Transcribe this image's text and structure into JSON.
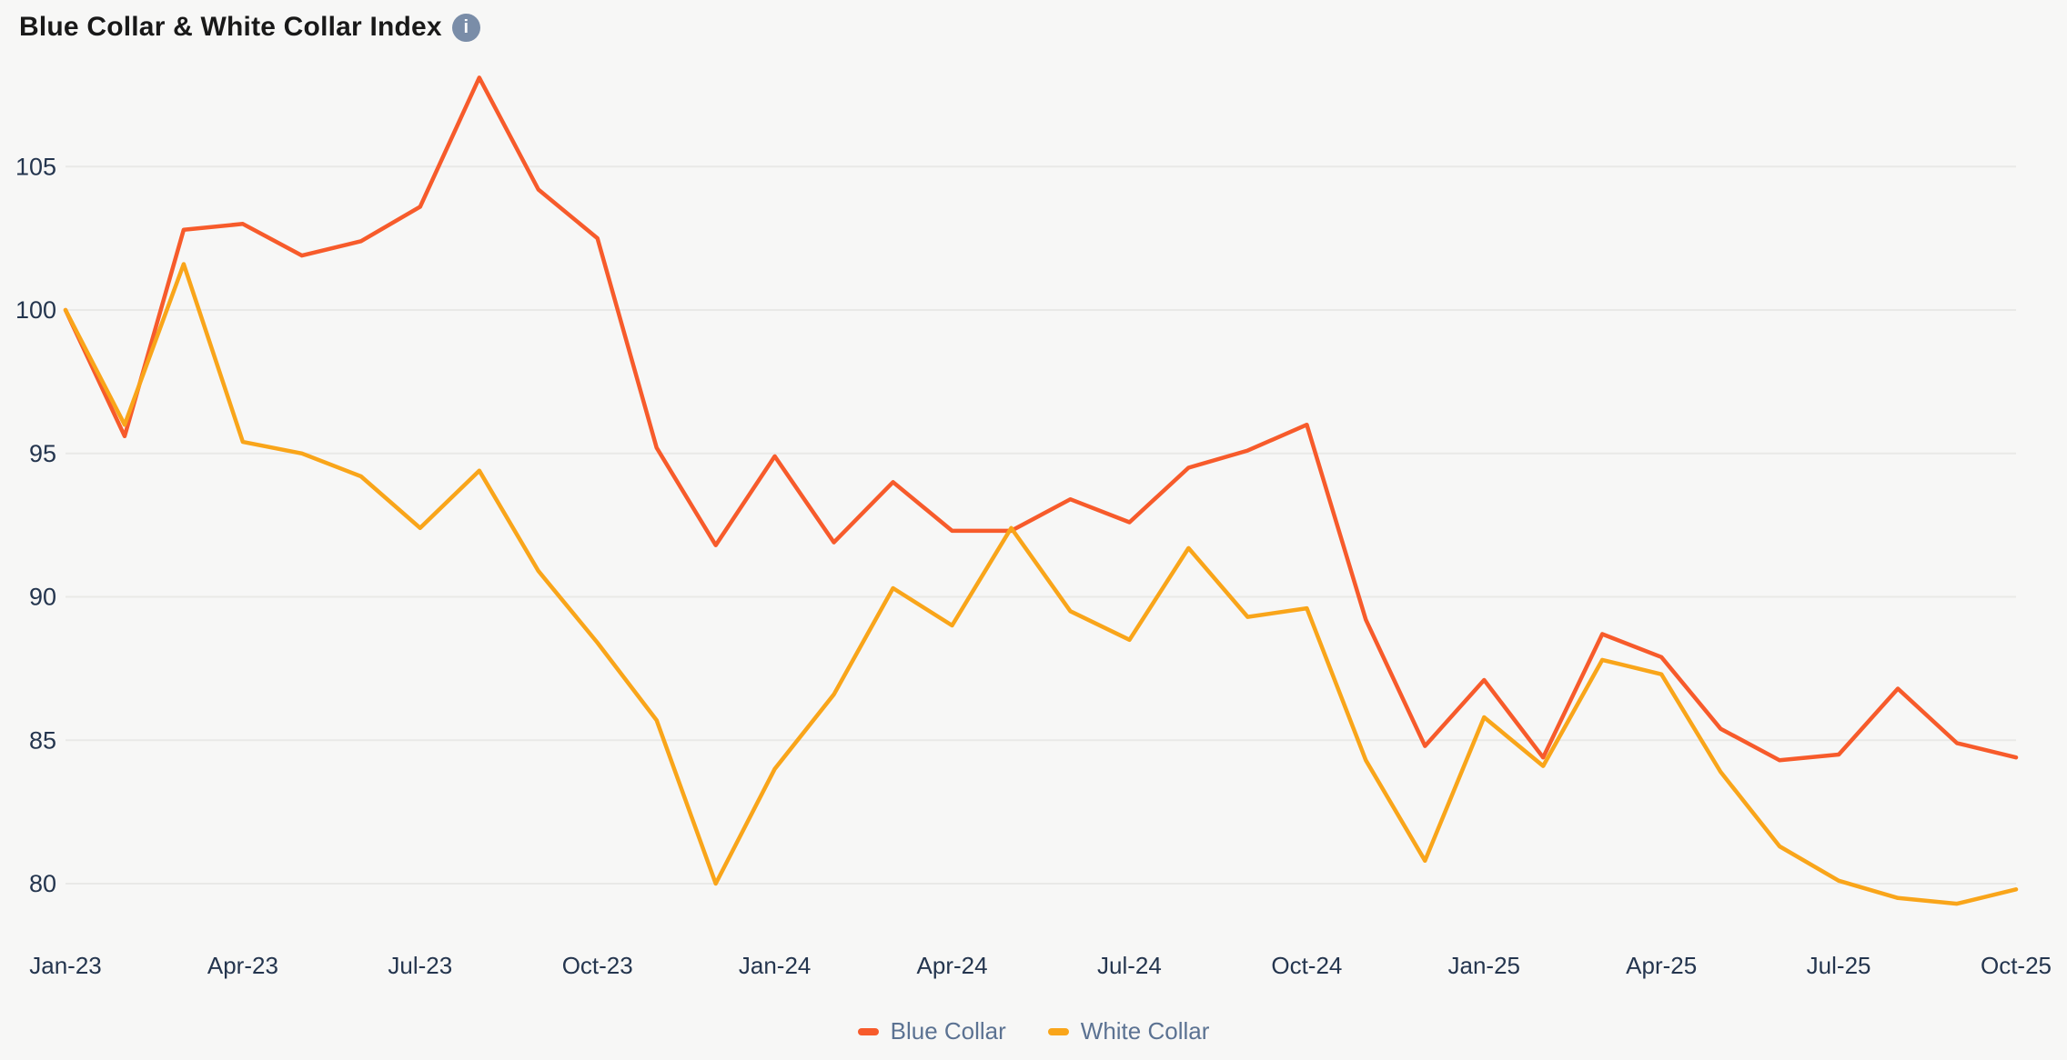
{
  "page": {
    "background": "#f7f7f6"
  },
  "header": {
    "title": "Blue Collar & White Collar Index",
    "info_icon": {
      "glyph": "i",
      "bg": "#7a8da8",
      "fg": "#ffffff"
    }
  },
  "colors": {
    "background": "#f7f7f6",
    "gridline": "#e9e9e7",
    "axis_label": "#24354e",
    "legend_label": "#5b7292",
    "title": "#191919",
    "info_icon_bg": "#7a8da8",
    "blue_collar": "#f75b2b",
    "white_collar": "#f9a51a"
  },
  "chart_data": {
    "type": "line",
    "title": "Blue Collar & White Collar Index",
    "x": [
      "Jan-23",
      "Feb-23",
      "Mar-23",
      "Apr-23",
      "May-23",
      "Jun-23",
      "Jul-23",
      "Aug-23",
      "Sep-23",
      "Oct-23",
      "Nov-23",
      "Dec-23",
      "Jan-24",
      "Feb-24",
      "Mar-24",
      "Apr-24",
      "May-24",
      "Jun-24",
      "Jul-24",
      "Aug-24",
      "Sep-24",
      "Oct-24",
      "Nov-24",
      "Dec-24",
      "Jan-25",
      "Feb-25",
      "Mar-25",
      "Apr-25",
      "May-25",
      "Jun-25",
      "Jul-25",
      "Aug-25",
      "Sep-25",
      "Oct-25"
    ],
    "x_tick_labels": [
      "Jan-23",
      "Apr-23",
      "Jul-23",
      "Oct-23",
      "Jan-24",
      "Apr-24",
      "Jul-24",
      "Oct-24",
      "Jan-25",
      "Apr-25",
      "Jul-25",
      "Oct-25"
    ],
    "x_tick_every": 3,
    "y_ticks": [
      105,
      100,
      95,
      90,
      85,
      80
    ],
    "ylim": [
      78.5,
      110.8
    ],
    "grid": "horizontal-only",
    "legend_position": "bottom-center",
    "series": [
      {
        "name": "Blue Collar",
        "color": "#f75b2b",
        "values": [
          100,
          95.6,
          102.8,
          103,
          101.9,
          102.4,
          103.6,
          108.1,
          104.2,
          102.5,
          95.2,
          91.8,
          94.9,
          91.9,
          94,
          92.3,
          92.3,
          93.4,
          92.6,
          94.5,
          95.1,
          96,
          89.2,
          84.8,
          87.1,
          84.4,
          88.7,
          87.9,
          85.4,
          84.3,
          84.5,
          86.8,
          84.9,
          84.4
        ]
      },
      {
        "name": "White Collar",
        "color": "#f9a51a",
        "values": [
          100,
          96,
          101.6,
          95.4,
          95,
          94.2,
          92.4,
          94.4,
          90.9,
          88.4,
          85.7,
          80,
          84,
          86.6,
          90.3,
          89,
          92.4,
          89.5,
          88.5,
          91.7,
          89.3,
          89.6,
          84.3,
          80.8,
          85.8,
          84.1,
          87.8,
          87.3,
          83.9,
          81.3,
          80.1,
          79.5,
          79.3,
          79.8
        ]
      }
    ]
  },
  "legend": {
    "items": [
      {
        "label": "Blue Collar",
        "color": "#f75b2b"
      },
      {
        "label": "White Collar",
        "color": "#f9a51a"
      }
    ]
  }
}
